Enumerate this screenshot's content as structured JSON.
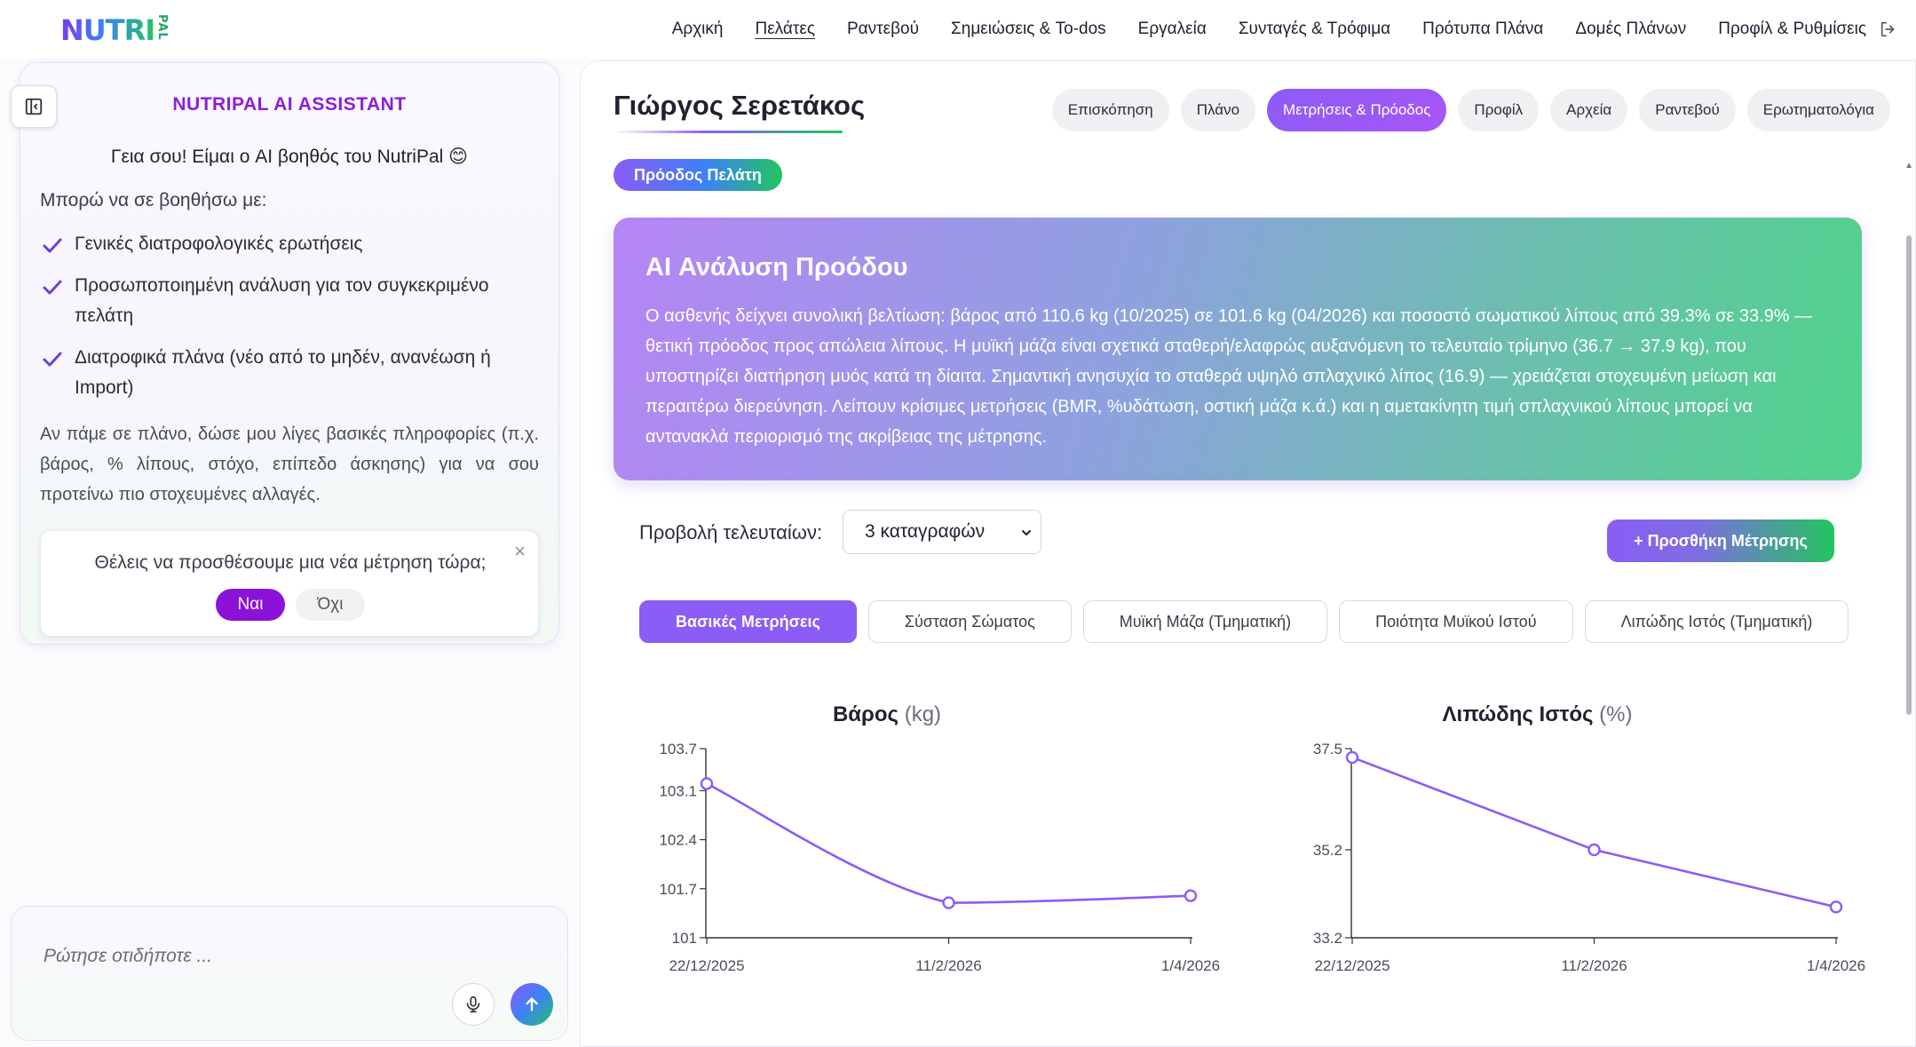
{
  "brand": {
    "logo_main": "NUTRI",
    "logo_sub": "PAL"
  },
  "nav": {
    "items": [
      {
        "label": "Αρχική",
        "active": false
      },
      {
        "label": "Πελάτες",
        "active": true
      },
      {
        "label": "Ραντεβού",
        "active": false
      },
      {
        "label": "Σημειώσεις & To-dos",
        "active": false
      },
      {
        "label": "Εργαλεία",
        "active": false
      },
      {
        "label": "Συνταγές & Τρόφιμα",
        "active": false
      },
      {
        "label": "Πρότυπα Πλάνα",
        "active": false
      },
      {
        "label": "Δομές Πλάνων",
        "active": false
      },
      {
        "label": "Προφίλ & Ρυθμίσεις",
        "active": false
      }
    ],
    "logout_icon": "logout-icon"
  },
  "assistant": {
    "title": "NUTRIPAL AI ASSISTANT",
    "greeting": "Γεια σου! Είμαι ο AI βοηθός του NutriPal 😊",
    "intro": "Μπορώ να σε βοηθήσω με:",
    "capabilities": [
      "Γενικές διατροφολογικές ερωτήσεις",
      "Προσωποποιημένη ανάλυση για τον συγκεκριμένο πελάτη",
      "Διατροφικά πλάνα (νέο από το μηδέν, ανανέωση ή Import)"
    ],
    "paragraph": "Αν πάμε σε πλάνο, δώσε μου λίγες βασικές πληροφορίες (π.χ. βάρος, % λίπους, στόχο, επίπεδο άσκησης) για να σου προτείνω πιο στοχευμένες αλλαγές.",
    "prompt": {
      "question": "Θέλεις να προσθέσουμε μια νέα μέτρηση τώρα;",
      "yes": "Ναι",
      "no": "Όχι",
      "close": "×"
    },
    "input_placeholder": "Ρώτησε οτιδήποτε ..."
  },
  "client": {
    "name": "Γιώργος Σερετάκος",
    "tabs": [
      {
        "label": "Επισκόπηση",
        "active": false
      },
      {
        "label": "Πλάνο",
        "active": false
      },
      {
        "label": "Μετρήσεις & Πρόοδος",
        "active": true
      },
      {
        "label": "Προφίλ",
        "active": false
      },
      {
        "label": "Αρχεία",
        "active": false
      },
      {
        "label": "Ραντεβού",
        "active": false
      },
      {
        "label": "Ερωτηματολόγια",
        "active": false
      }
    ],
    "section_pill": "Πρόοδος Πελάτη"
  },
  "analysis": {
    "title": "AI Ανάλυση Προόδου",
    "text": "Ο ασθενής δείχνει συνολική βελτίωση: βάρος από 110.6 kg (10/2025) σε 101.6 kg (04/2026) και ποσοστό σωματικού λίπους από 39.3% σε 33.9% — θετική πρόοδος προς απώλεια λίπους. Η μυϊκή μάζα είναι σχετικά σταθερή/ελαφρώς αυξανόμενη το τελευταίο τρίμηνο (36.7 → 37.9 kg), που υποστηρίζει διατήρηση μυός κατά τη δίαιτα. Σημαντική ανησυχία το σταθερά υψηλό σπλαχνικό λίπος (16.9) — χρειάζεται στοχευμένη μείωση και περαιτέρω διερεύνηση. Λείπουν κρίσιμες μετρήσεις (BMR, %υδάτωση, οστική μάζα κ.ά.) και η αμετακίνητη τιμή σπλαχνικού λίπους μπορεί να αντανακλά περιορισμό της ακρίβειας της μέτρησης."
  },
  "controls": {
    "view_label": "Προβολή τελευταίων:",
    "view_selected": "3 καταγραφών",
    "add_button": "+ Προσθήκη Μέτρησης",
    "subtabs": [
      {
        "label": "Βασικές Μετρήσεις",
        "active": true
      },
      {
        "label": "Σύσταση Σώματος",
        "active": false
      },
      {
        "label": "Μυϊκή Μάζα (Τμηματική)",
        "active": false
      },
      {
        "label": "Ποιότητα Μυϊκού Ιστού",
        "active": false
      },
      {
        "label": "Λιπώδης Ιστός (Τμηματική)",
        "active": false
      }
    ]
  },
  "colors": {
    "accent": "#8b5cf6",
    "accent_dark": "#8b12d9",
    "green": "#22c55e",
    "line": "#8b5cf6"
  },
  "chart_data": [
    {
      "type": "line",
      "title": "Βάρος",
      "unit": "(kg)",
      "x": [
        "22/12/2025",
        "11/2/2026",
        "1/4/2026"
      ],
      "series": [
        {
          "values": [
            103.2,
            101.5,
            101.6
          ]
        }
      ],
      "yticks": [
        "101",
        "101.7",
        "102.4",
        "103.1",
        "103.7"
      ],
      "ylim": [
        101,
        103.7
      ],
      "smooth": true,
      "grid": false
    },
    {
      "type": "line",
      "title": "Λιπώδης Ιστός",
      "unit": "(%)",
      "x": [
        "22/12/2025",
        "11/2/2026",
        "1/4/2026"
      ],
      "series": [
        {
          "values": [
            37.3,
            35.2,
            33.9
          ]
        }
      ],
      "yticks": [
        "33.2",
        "35.2",
        "37.5"
      ],
      "ylim": [
        33.2,
        37.5
      ],
      "smooth": false,
      "grid": false
    }
  ]
}
